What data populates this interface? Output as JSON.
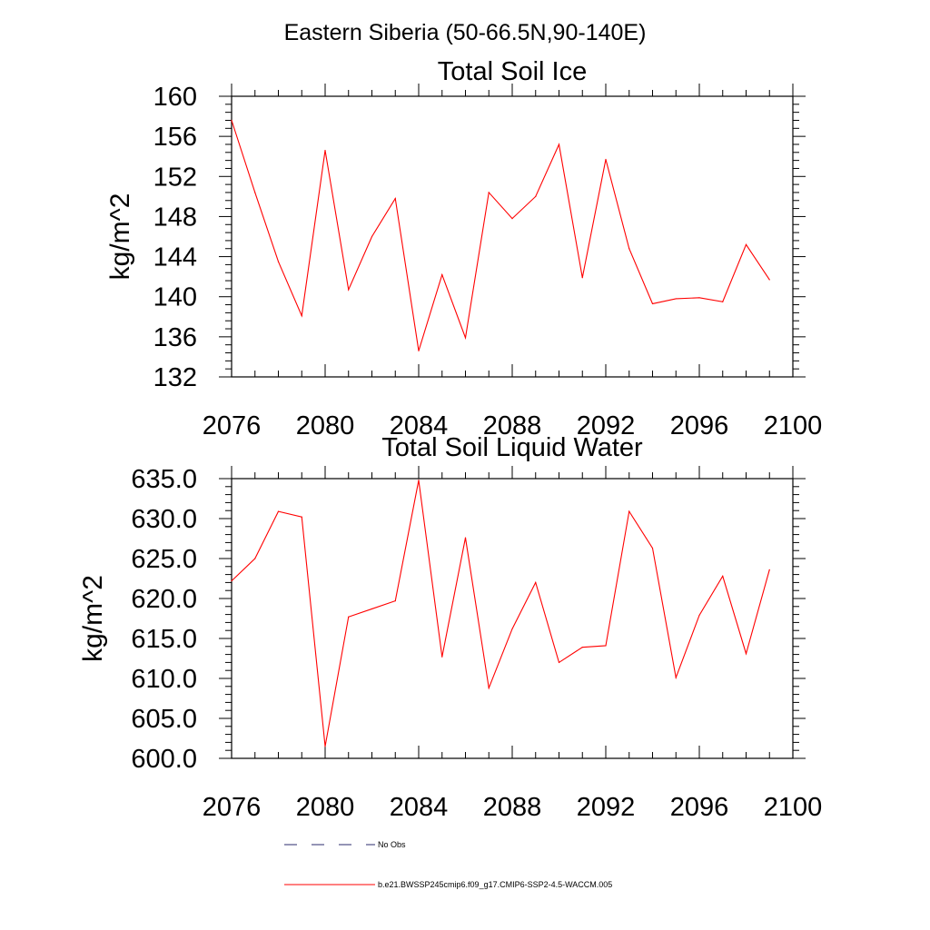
{
  "figure": {
    "suptitle": "Eastern Siberia (50-66.5N,90-140E)"
  },
  "chart_data": [
    {
      "type": "line",
      "title": "Total Soil Ice",
      "xlabel": "",
      "ylabel": "kg/m^2",
      "xlim": [
        2076,
        2100
      ],
      "ylim": [
        132,
        160
      ],
      "x_ticks": [
        "2076",
        "2080",
        "2084",
        "2088",
        "2092",
        "2096",
        "2100"
      ],
      "y_ticks": [
        "132",
        "136",
        "140",
        "144",
        "148",
        "152",
        "156",
        "160"
      ],
      "x": [
        2076,
        2077,
        2078,
        2079,
        2080,
        2081,
        2082,
        2083,
        2084,
        2085,
        2086,
        2087,
        2088,
        2089,
        2090,
        2091,
        2092,
        2093,
        2094,
        2095,
        2096,
        2097,
        2098,
        2099
      ],
      "series": [
        {
          "name": "b.e21.BWSSP245cmip6.f09_g17.CMIP6-SSP2-4.5-WACCM.005",
          "color": "#ff0000",
          "values": [
            157.6,
            150.4,
            143.5,
            138.1,
            154.6,
            140.7,
            146.0,
            149.8,
            134.6,
            142.2,
            135.9,
            150.4,
            147.8,
            150.0,
            155.2,
            141.9,
            153.7,
            144.8,
            139.3,
            139.8,
            139.9,
            139.5,
            145.2,
            141.7
          ]
        }
      ],
      "grid": false
    },
    {
      "type": "line",
      "title": "Total Soil Liquid Water",
      "xlabel": "",
      "ylabel": "kg/m^2",
      "xlim": [
        2076,
        2100
      ],
      "ylim": [
        600,
        635
      ],
      "x_ticks": [
        "2076",
        "2080",
        "2084",
        "2088",
        "2092",
        "2096",
        "2100"
      ],
      "y_ticks": [
        "600.0",
        "605.0",
        "610.0",
        "615.0",
        "620.0",
        "625.0",
        "630.0",
        "635.0"
      ],
      "x": [
        2076,
        2077,
        2078,
        2079,
        2080,
        2081,
        2082,
        2083,
        2084,
        2085,
        2086,
        2087,
        2088,
        2089,
        2090,
        2091,
        2092,
        2093,
        2094,
        2095,
        2096,
        2097,
        2098,
        2099
      ],
      "series": [
        {
          "name": "b.e21.BWSSP245cmip6.f09_g17.CMIP6-SSP2-4.5-WACCM.005",
          "color": "#ff0000",
          "values": [
            622.2,
            625.0,
            630.9,
            630.2,
            601.5,
            617.7,
            618.7,
            619.7,
            634.8,
            612.7,
            627.6,
            608.8,
            616.2,
            622.0,
            612.0,
            613.9,
            614.1,
            630.9,
            626.3,
            610.1,
            617.9,
            622.8,
            613.1,
            623.6
          ]
        }
      ],
      "grid": false
    }
  ],
  "legend": {
    "placement": "bottom",
    "entries": [
      {
        "label": "No Obs",
        "color": "#2b2b6e",
        "style": "dashed"
      },
      {
        "label": "b.e21.BWSSP245cmip6.f09_g17.CMIP6-SSP2-4.5-WACCM.005",
        "color": "#ff0000",
        "style": "solid"
      }
    ]
  }
}
